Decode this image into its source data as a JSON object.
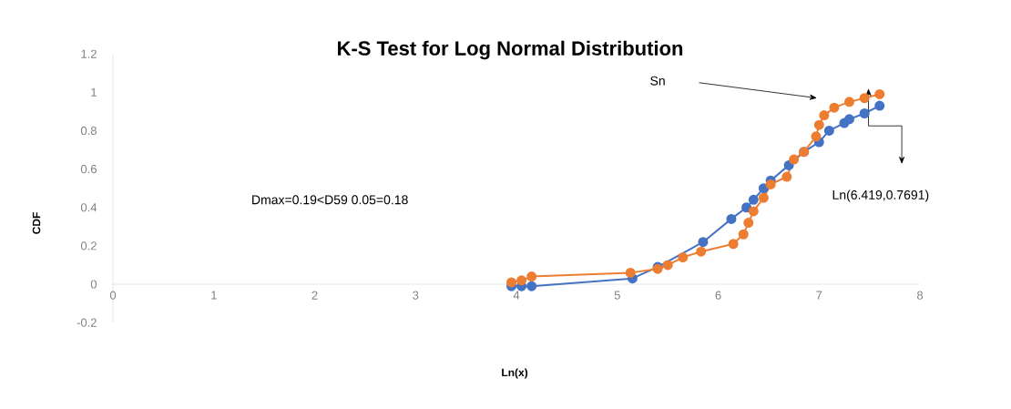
{
  "chart_data": {
    "type": "line",
    "title": "K-S Test for Log Normal Distribution",
    "xlabel": "Ln(x)",
    "ylabel": "CDF",
    "annotations": [
      "Sn",
      "Ln(6.419,0.7691)",
      "Dmax=0.19<D59 0.05=0.18"
    ],
    "xlim": [
      0,
      8
    ],
    "ylim": [
      -0.2,
      1.2
    ],
    "xticks": [
      0,
      1,
      2,
      3,
      4,
      5,
      6,
      7,
      8
    ],
    "yticks": [
      -0.2,
      0,
      0.2,
      0.4,
      0.6,
      0.8,
      1,
      1.2
    ],
    "marker": "circle",
    "line_style": "solid",
    "grid": false,
    "series": [
      {
        "color": "#4472c4",
        "x": [
          3.95,
          4.05,
          4.15,
          5.15,
          5.4,
          5.85,
          6.13,
          6.28,
          6.35,
          6.45,
          6.52,
          6.7,
          6.85,
          7.0,
          7.1,
          7.25,
          7.3,
          7.45,
          7.6
        ],
        "values": [
          -0.01,
          -0.01,
          -0.01,
          0.03,
          0.09,
          0.22,
          0.34,
          0.4,
          0.44,
          0.5,
          0.54,
          0.62,
          0.69,
          0.74,
          0.8,
          0.84,
          0.86,
          0.89,
          0.93
        ]
      },
      {
        "color": "#ed7d31",
        "x": [
          3.95,
          4.05,
          4.15,
          5.13,
          5.4,
          5.5,
          5.65,
          5.83,
          6.15,
          6.25,
          6.3,
          6.35,
          6.45,
          6.52,
          6.68,
          6.75,
          6.85,
          6.97,
          7.0,
          7.05,
          7.15,
          7.3,
          7.45,
          7.6
        ],
        "values": [
          0.01,
          0.02,
          0.04,
          0.06,
          0.08,
          0.1,
          0.14,
          0.17,
          0.21,
          0.26,
          0.32,
          0.38,
          0.45,
          0.52,
          0.56,
          0.65,
          0.69,
          0.77,
          0.83,
          0.88,
          0.92,
          0.95,
          0.97,
          0.99
        ]
      }
    ]
  }
}
